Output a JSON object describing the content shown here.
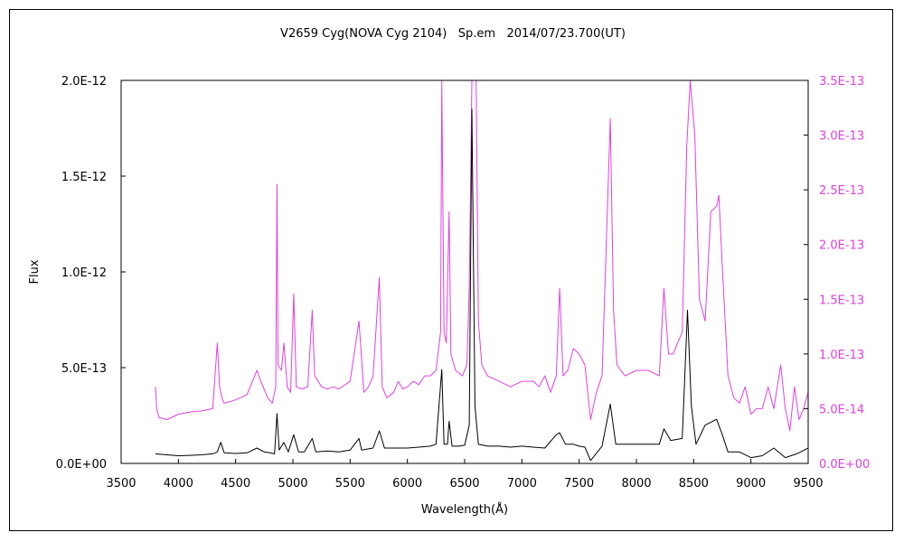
{
  "chart_data": {
    "type": "line",
    "title": "V2659 Cyg(NOVA Cyg 2104)   Sp.em   2014/07/23.700(UT)",
    "xlabel": "Wavelength(Å)",
    "ylabel": "Flux",
    "xlim": [
      3500,
      9500
    ],
    "x_ticks": [
      "3500",
      "4000",
      "4500",
      "5000",
      "5500",
      "6000",
      "6500",
      "7000",
      "7500",
      "8000",
      "8500",
      "9000",
      "9500"
    ],
    "left_axis": {
      "ylim": [
        0,
        2e-12
      ],
      "tick_values": [
        0,
        5e-13,
        1e-12,
        1.5e-12,
        2e-12
      ],
      "tick_labels": [
        "0.0E+00",
        "5.0E-13",
        "1.0E-12",
        "1.5E-12",
        "2.0E-12"
      ],
      "color": "#000000"
    },
    "right_axis": {
      "ylim": [
        0,
        3.5e-13
      ],
      "tick_values": [
        0,
        5e-14,
        1e-13,
        1.5e-13,
        2e-13,
        2.5e-13,
        3e-13,
        3.5e-13
      ],
      "tick_labels": [
        "0.0E+00",
        "5.0E-14",
        "1.0E-13",
        "1.5E-13",
        "2.0E-13",
        "2.5E-13",
        "3.0E-13",
        "3.5E-13"
      ],
      "color": "#e040e0"
    },
    "grid": false,
    "series": [
      {
        "axis": "left",
        "color": "#000000",
        "x": [
          3800,
          3900,
          4000,
          4100,
          4200,
          4300,
          4340,
          4370,
          4400,
          4500,
          4600,
          4686,
          4750,
          4800,
          4840,
          4861,
          4880,
          4920,
          4960,
          5007,
          5050,
          5100,
          5169,
          5200,
          5300,
          5400,
          5500,
          5577,
          5600,
          5700,
          5755,
          5800,
          5900,
          6000,
          6100,
          6200,
          6250,
          6300,
          6320,
          6350,
          6364,
          6390,
          6450,
          6500,
          6540,
          6563,
          6590,
          6620,
          6700,
          6800,
          6900,
          7000,
          7100,
          7200,
          7300,
          7330,
          7380,
          7450,
          7500,
          7550,
          7600,
          7700,
          7772,
          7820,
          7900,
          8000,
          8100,
          8200,
          8240,
          8300,
          8400,
          8446,
          8480,
          8520,
          8600,
          8700,
          8750,
          8800,
          8900,
          9000,
          9100,
          9200,
          9300,
          9400,
          9500
        ],
        "y": [
          5e-14,
          4.5e-14,
          4e-14,
          4.2e-14,
          4.5e-14,
          5e-14,
          6e-14,
          1.1e-13,
          5.5e-14,
          5.2e-14,
          5.5e-14,
          8e-14,
          6e-14,
          5.5e-14,
          5e-14,
          2.6e-13,
          7e-14,
          1.1e-13,
          6e-14,
          1.5e-13,
          6e-14,
          6e-14,
          1.3e-13,
          6e-14,
          6.5e-14,
          6e-14,
          7e-14,
          1.3e-13,
          7e-14,
          8e-14,
          1.7e-13,
          8e-14,
          8e-14,
          8e-14,
          8.5e-14,
          9e-14,
          1e-13,
          4.9e-13,
          1e-13,
          1e-13,
          2.2e-13,
          9e-14,
          9e-14,
          9.5e-14,
          2e-13,
          1.85e-12,
          3e-13,
          1e-13,
          9e-14,
          9e-14,
          8.5e-14,
          9e-14,
          8.5e-14,
          8e-14,
          1.5e-13,
          1.6e-13,
          1e-13,
          1e-13,
          9e-14,
          8.5e-14,
          1.5e-14,
          9e-14,
          3.1e-13,
          1e-13,
          1e-13,
          1e-13,
          1e-13,
          1e-13,
          1.8e-13,
          1.2e-13,
          1.3e-13,
          8e-13,
          3e-13,
          1e-13,
          2e-13,
          2.3e-13,
          1.5e-13,
          6e-14,
          6e-14,
          3e-14,
          4e-14,
          8e-14,
          3e-14,
          5e-14,
          8e-14
        ]
      },
      {
        "axis": "right",
        "color": "#e040e0",
        "x": [
          3800,
          3810,
          3830,
          3900,
          4000,
          4100,
          4200,
          4300,
          4340,
          4360,
          4380,
          4400,
          4500,
          4600,
          4686,
          4720,
          4780,
          4820,
          4850,
          4861,
          4870,
          4900,
          4922,
          4950,
          4980,
          5007,
          5030,
          5080,
          5130,
          5169,
          5190,
          5250,
          5300,
          5350,
          5400,
          5500,
          5577,
          5620,
          5660,
          5700,
          5755,
          5780,
          5820,
          5880,
          5920,
          5960,
          6000,
          6050,
          6100,
          6150,
          6200,
          6250,
          6290,
          6300,
          6320,
          6340,
          6364,
          6380,
          6420,
          6480,
          6520,
          6540,
          6563,
          6590,
          6600,
          6620,
          6650,
          6700,
          6800,
          6900,
          7000,
          7100,
          7150,
          7200,
          7250,
          7300,
          7330,
          7360,
          7400,
          7450,
          7500,
          7550,
          7600,
          7650,
          7700,
          7772,
          7800,
          7830,
          7900,
          8000,
          8100,
          8200,
          8240,
          8280,
          8320,
          8400,
          8440,
          8470,
          8510,
          8550,
          8600,
          8650,
          8700,
          8720,
          8750,
          8800,
          8850,
          8900,
          8950,
          9000,
          9050,
          9100,
          9150,
          9200,
          9260,
          9300,
          9340,
          9380,
          9420,
          9460,
          9500
        ],
        "y": [
          7e-14,
          5e-14,
          4.2e-14,
          4e-14,
          4.5e-14,
          4.7e-14,
          4.8e-14,
          5e-14,
          1.1e-13,
          7e-14,
          6e-14,
          5.5e-14,
          5.8e-14,
          6.3e-14,
          8.5e-14,
          7.5e-14,
          6e-14,
          5.5e-14,
          7e-14,
          2.55e-13,
          9e-14,
          8.5e-14,
          1.1e-13,
          7e-14,
          6.5e-14,
          1.55e-13,
          7e-14,
          6.8e-14,
          7e-14,
          1.4e-13,
          8e-14,
          7e-14,
          6.8e-14,
          7e-14,
          6.8e-14,
          7.5e-14,
          1.3e-13,
          6.5e-14,
          7e-14,
          8e-14,
          1.7e-13,
          7e-14,
          6e-14,
          6.5e-14,
          7.5e-14,
          6.8e-14,
          7e-14,
          7.5e-14,
          7.2e-14,
          8e-14,
          8e-14,
          8.5e-14,
          1.2e-13,
          3.5e-13,
          1.2e-13,
          1.1e-13,
          2.3e-13,
          1e-13,
          8.5e-14,
          8e-14,
          9e-14,
          1.6e-13,
          3.5e-13,
          3.5e-13,
          3.5e-13,
          1.3e-13,
          9e-14,
          8e-14,
          7.5e-14,
          7e-14,
          7.5e-14,
          7.5e-14,
          7e-14,
          8e-14,
          6.5e-14,
          8e-14,
          1.6e-13,
          8e-14,
          8.5e-14,
          1.05e-13,
          1e-13,
          9e-14,
          4e-14,
          6.5e-14,
          8e-14,
          3.15e-13,
          1.4e-13,
          9e-14,
          8e-14,
          8.5e-14,
          8.5e-14,
          8e-14,
          1.6e-13,
          1e-13,
          1e-13,
          1.2e-13,
          2.9e-13,
          3.5e-13,
          3e-13,
          1.5e-13,
          1.3e-13,
          2.3e-13,
          2.35e-13,
          2.45e-13,
          1.8e-13,
          8e-14,
          6e-14,
          5.5e-14,
          7e-14,
          4.5e-14,
          5e-14,
          5e-14,
          7e-14,
          5e-14,
          9e-14,
          5e-14,
          3e-14,
          7e-14,
          4e-14,
          5e-14,
          6.5e-14
        ]
      }
    ]
  }
}
